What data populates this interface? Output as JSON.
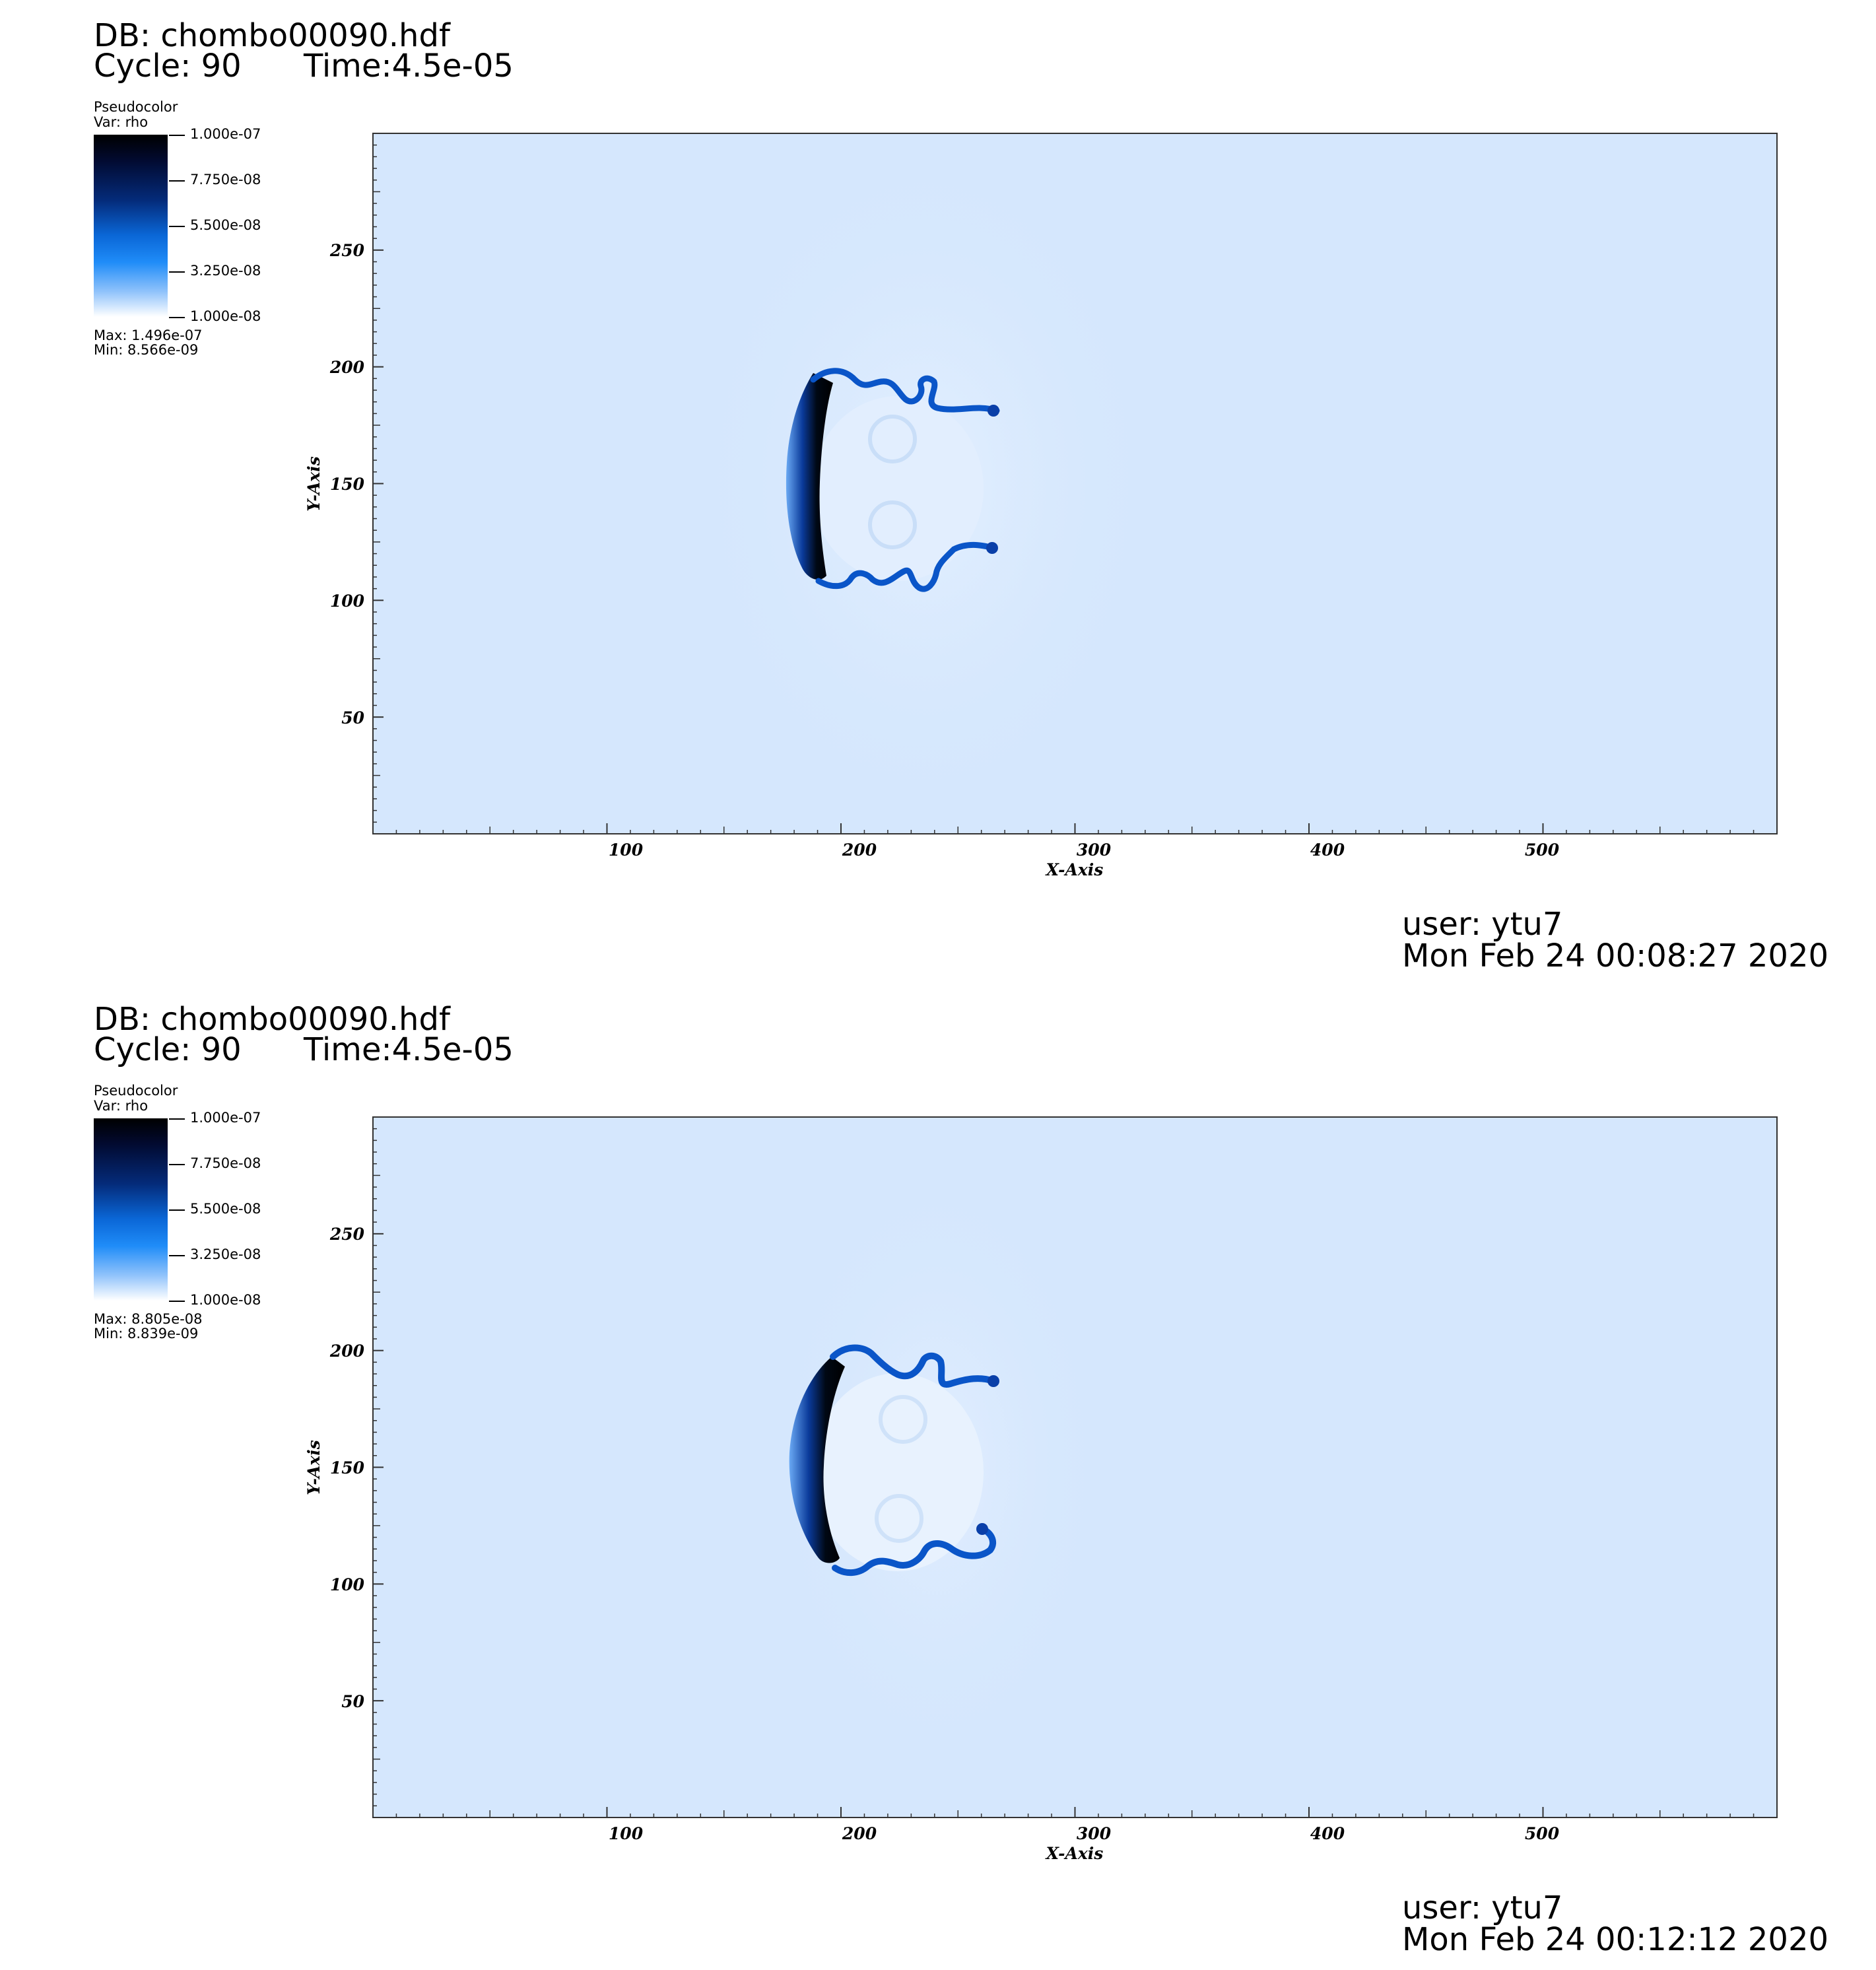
{
  "panels": [
    {
      "db": "DB: chombo00090.hdf",
      "cycle": "Cycle: 90",
      "time": "Time:4.5e-05",
      "legend": {
        "title": "Pseudocolor",
        "var": "Var: rho",
        "ticks": [
          "1.000e-07",
          "7.750e-08",
          "5.500e-08",
          "3.250e-08",
          "1.000e-08"
        ],
        "max": "Max:  1.496e-07",
        "min": "Min:  8.566e-09"
      },
      "user": "user: ytu7",
      "date": "Mon Feb 24 00:08:27 2020"
    },
    {
      "db": "DB: chombo00090.hdf",
      "cycle": "Cycle: 90",
      "time": "Time:4.5e-05",
      "legend": {
        "title": "Pseudocolor",
        "var": "Var: rho",
        "ticks": [
          "1.000e-07",
          "7.750e-08",
          "5.500e-08",
          "3.250e-08",
          "1.000e-08"
        ],
        "max": "Max:  8.805e-08",
        "min": "Min:  8.839e-09"
      },
      "user": "user: ytu7",
      "date": "Mon Feb 24 00:12:12 2020"
    }
  ],
  "chart_data": [
    {
      "type": "heatmap",
      "variable": "rho",
      "colormap": [
        "#000000",
        "#042b7a",
        "#0a66d6",
        "#1f8cf8",
        "#ffffff"
      ],
      "background_color": "#d5e7fd",
      "colorbar_range": [
        1e-08,
        1e-07
      ],
      "data_max": 1.496e-07,
      "data_min": 8.566e-09,
      "xlabel": "X-Axis",
      "ylabel": "Y-Axis",
      "xlim": [
        0,
        600
      ],
      "ylim": [
        0,
        300
      ],
      "xticks": [
        100,
        200,
        300,
        400,
        500
      ],
      "yticks": [
        50,
        100,
        150,
        200,
        250
      ],
      "feature": {
        "front_x": 180,
        "front_y_range": [
          104,
          197
        ],
        "tail_tips": [
          [
            265,
            182
          ],
          [
            265,
            122
          ]
        ]
      }
    },
    {
      "type": "heatmap",
      "variable": "rho",
      "colormap": [
        "#000000",
        "#042b7a",
        "#0a66d6",
        "#1f8cf8",
        "#ffffff"
      ],
      "background_color": "#d5e7fd",
      "colorbar_range": [
        1e-08,
        1e-07
      ],
      "data_max": 8.805e-08,
      "data_min": 8.839e-09,
      "xlabel": "X-Axis",
      "ylabel": "Y-Axis",
      "xlim": [
        0,
        600
      ],
      "ylim": [
        0,
        300
      ],
      "xticks": [
        100,
        200,
        300,
        400,
        500
      ],
      "yticks": [
        50,
        100,
        150,
        200,
        250
      ],
      "feature": {
        "front_x": 178,
        "front_y_range": [
          102,
          200
        ],
        "tail_tips": [
          [
            265,
            186
          ],
          [
            265,
            118
          ]
        ]
      }
    }
  ]
}
